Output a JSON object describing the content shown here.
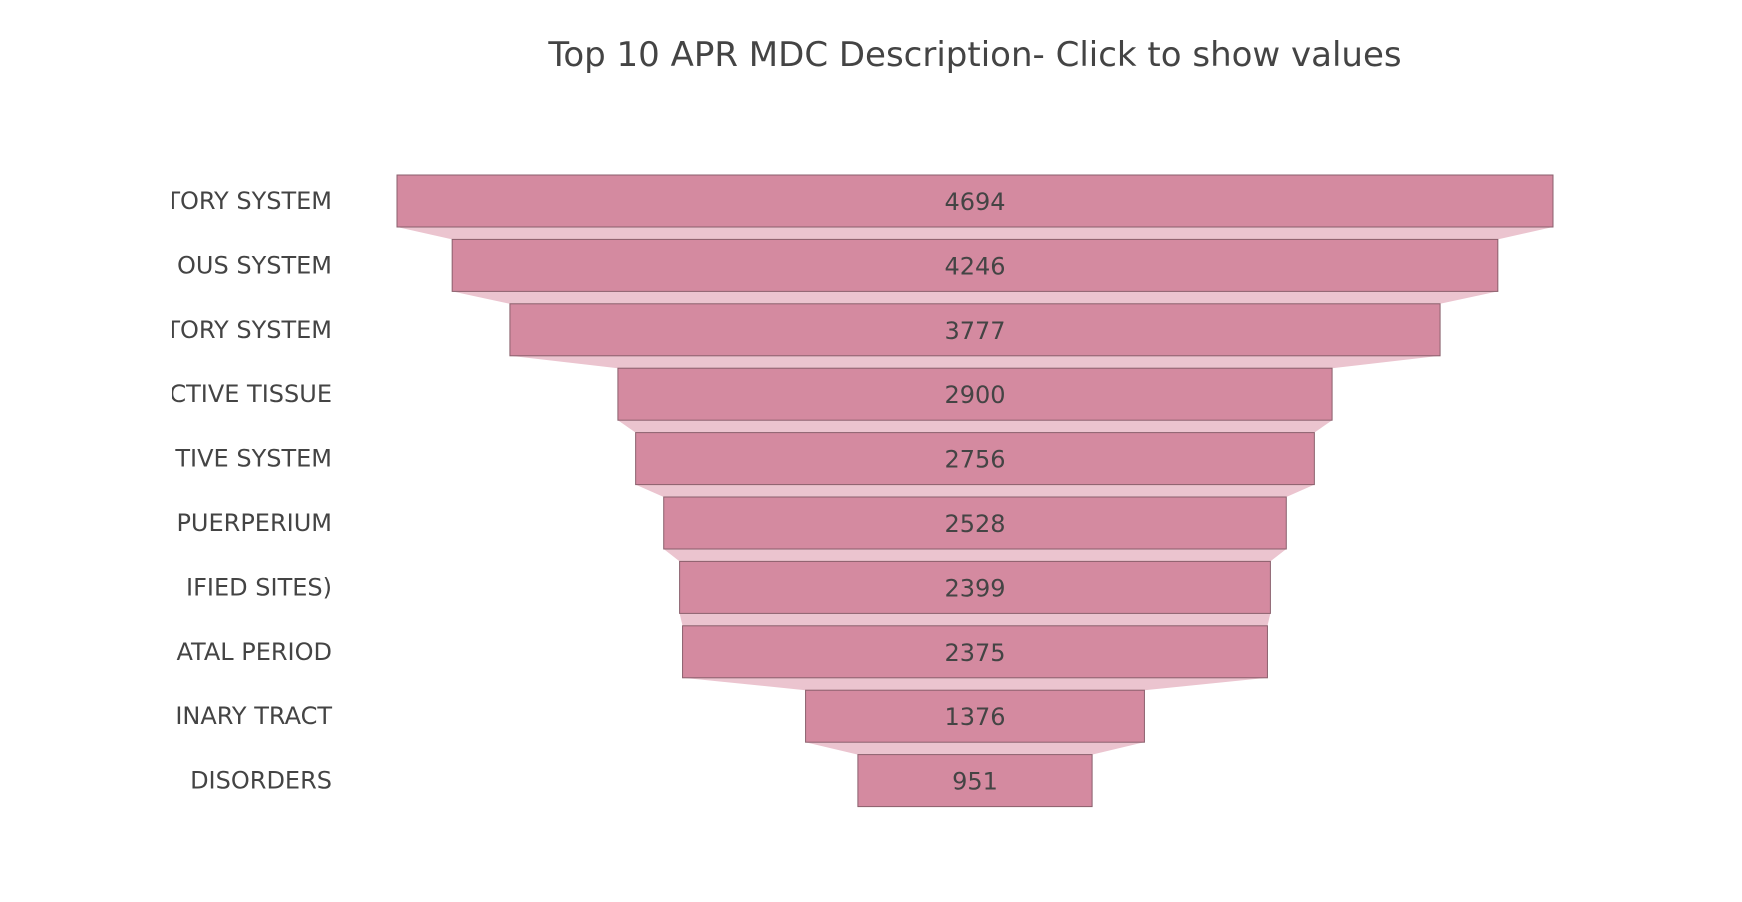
{
  "chart_data": {
    "type": "funnel",
    "title": "Top 10 APR MDC Description- Click to show values",
    "categories": [
      "TORY SYSTEM",
      "OUS SYSTEM",
      "TORY SYSTEM",
      "CTIVE TISSUE",
      "TIVE SYSTEM",
      "PUERPERIUM",
      "IFIED SITES)",
      "ATAL PERIOD",
      "INARY TRACT",
      "DISORDERS"
    ],
    "values": [
      4694,
      4246,
      3777,
      2900,
      2756,
      2528,
      2399,
      2375,
      1376,
      951
    ],
    "value_labels": [
      "4694",
      "4246",
      "3777",
      "2900",
      "2756",
      "2528",
      "2399",
      "2375",
      "1376",
      "951"
    ],
    "colors": {
      "bar": "#d48aa0",
      "connector": "#ebc4cf",
      "text": "#444444"
    }
  }
}
